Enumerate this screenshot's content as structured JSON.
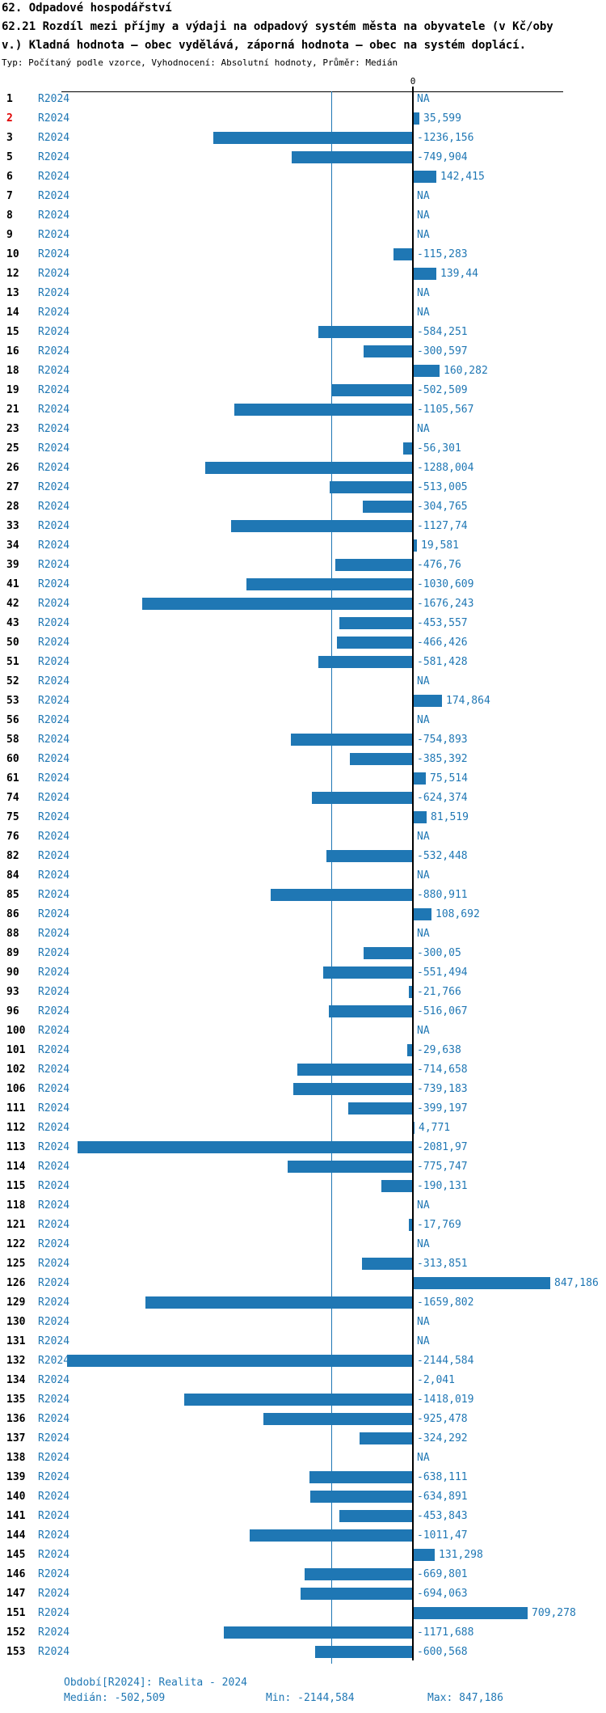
{
  "header": {
    "title": "62. Odpadové hospodářství",
    "subtitle_lines": [
      "62.21 Rozdíl mezi příjmy a výdaji na odpadový systém města na obyvatele (v Kč/oby",
      "v.) Kladná hodnota – obec vydělává, záporná hodnota – obec na systém doplácí."
    ],
    "meta": "Typ: Počítaný podle vzorce, Vyhodnocení: Absolutní hodnoty, Průměr: Medián"
  },
  "chart_data": {
    "type": "bar",
    "orientation": "horizontal",
    "title": "62.21 Rozdíl mezi příjmy a výdaji na odpadový systém města na obyvatele (v Kč/obyv.)",
    "value_unit": "Kč/obyv.",
    "series_name": "R2024",
    "na_label": "NA",
    "zero_axis_label": "0",
    "highlight_row_index": "2",
    "median": -502.509,
    "min": -2144.584,
    "max": 847.186,
    "legend_position": "none",
    "grid": false,
    "rows": [
      {
        "index": "1",
        "value": null
      },
      {
        "index": "2",
        "value": 35.599
      },
      {
        "index": "3",
        "value": -1236.156
      },
      {
        "index": "5",
        "value": -749.904
      },
      {
        "index": "6",
        "value": 142.415
      },
      {
        "index": "7",
        "value": null
      },
      {
        "index": "8",
        "value": null
      },
      {
        "index": "9",
        "value": null
      },
      {
        "index": "10",
        "value": -115.283
      },
      {
        "index": "12",
        "value": 139.44
      },
      {
        "index": "13",
        "value": null
      },
      {
        "index": "14",
        "value": null
      },
      {
        "index": "15",
        "value": -584.251
      },
      {
        "index": "16",
        "value": -300.597
      },
      {
        "index": "18",
        "value": 160.282
      },
      {
        "index": "19",
        "value": -502.509
      },
      {
        "index": "21",
        "value": -1105.567
      },
      {
        "index": "23",
        "value": null
      },
      {
        "index": "25",
        "value": -56.301
      },
      {
        "index": "26",
        "value": -1288.004
      },
      {
        "index": "27",
        "value": -513.005
      },
      {
        "index": "28",
        "value": -304.765
      },
      {
        "index": "33",
        "value": -1127.74
      },
      {
        "index": "34",
        "value": 19.581
      },
      {
        "index": "39",
        "value": -476.76
      },
      {
        "index": "41",
        "value": -1030.609
      },
      {
        "index": "42",
        "value": -1676.243
      },
      {
        "index": "43",
        "value": -453.557
      },
      {
        "index": "50",
        "value": -466.426
      },
      {
        "index": "51",
        "value": -581.428
      },
      {
        "index": "52",
        "value": null
      },
      {
        "index": "53",
        "value": 174.864
      },
      {
        "index": "56",
        "value": null
      },
      {
        "index": "58",
        "value": -754.893
      },
      {
        "index": "60",
        "value": -385.392
      },
      {
        "index": "61",
        "value": 75.514
      },
      {
        "index": "74",
        "value": -624.374
      },
      {
        "index": "75",
        "value": 81.519
      },
      {
        "index": "76",
        "value": null
      },
      {
        "index": "82",
        "value": -532.448
      },
      {
        "index": "84",
        "value": null
      },
      {
        "index": "85",
        "value": -880.911
      },
      {
        "index": "86",
        "value": 108.692
      },
      {
        "index": "88",
        "value": null
      },
      {
        "index": "89",
        "value": -300.05
      },
      {
        "index": "90",
        "value": -551.494
      },
      {
        "index": "93",
        "value": -21.766
      },
      {
        "index": "96",
        "value": -516.067
      },
      {
        "index": "100",
        "value": null
      },
      {
        "index": "101",
        "value": -29.638
      },
      {
        "index": "102",
        "value": -714.658
      },
      {
        "index": "106",
        "value": -739.183
      },
      {
        "index": "111",
        "value": -399.197
      },
      {
        "index": "112",
        "value": 4.771
      },
      {
        "index": "113",
        "value": -2081.97
      },
      {
        "index": "114",
        "value": -775.747
      },
      {
        "index": "115",
        "value": -190.131
      },
      {
        "index": "118",
        "value": null
      },
      {
        "index": "121",
        "value": -17.769
      },
      {
        "index": "122",
        "value": null
      },
      {
        "index": "125",
        "value": -313.851
      },
      {
        "index": "126",
        "value": 847.186
      },
      {
        "index": "129",
        "value": -1659.802
      },
      {
        "index": "130",
        "value": null
      },
      {
        "index": "131",
        "value": null
      },
      {
        "index": "132",
        "value": -2144.584
      },
      {
        "index": "134",
        "value": -2.041
      },
      {
        "index": "135",
        "value": -1418.019
      },
      {
        "index": "136",
        "value": -925.478
      },
      {
        "index": "137",
        "value": -324.292
      },
      {
        "index": "138",
        "value": null
      },
      {
        "index": "139",
        "value": -638.111
      },
      {
        "index": "140",
        "value": -634.891
      },
      {
        "index": "141",
        "value": -453.843
      },
      {
        "index": "144",
        "value": -1011.47
      },
      {
        "index": "145",
        "value": 131.298
      },
      {
        "index": "146",
        "value": -669.801
      },
      {
        "index": "147",
        "value": -694.063
      },
      {
        "index": "151",
        "value": 709.278
      },
      {
        "index": "152",
        "value": -1171.688
      },
      {
        "index": "153",
        "value": -600.568
      }
    ]
  },
  "footer": {
    "period": "Období[R2024]: Realita - 2024",
    "median": "Medián: -502,509",
    "min": "Min: -2144,584",
    "max": "Max: 847,186"
  },
  "colors": {
    "bar_blue": "#1f77b4",
    "text_blue": "#1f77b4",
    "highlight_red": "#e00000",
    "axis_black": "#000000"
  }
}
